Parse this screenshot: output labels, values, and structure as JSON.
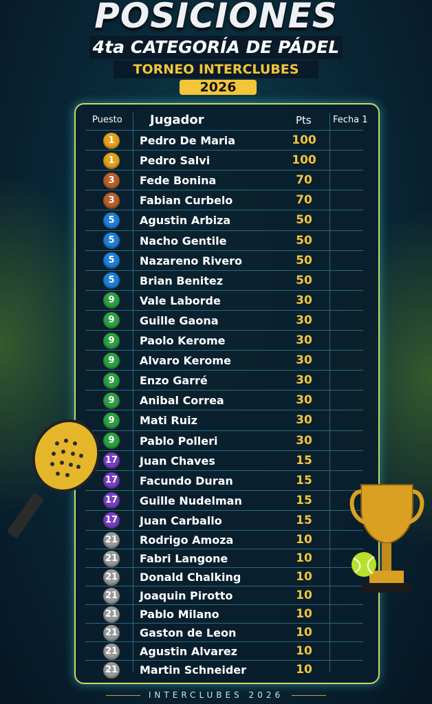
{
  "header": {
    "title": "POSICIONES",
    "subtitle": "4ta CATEGORÍA DE PÁDEL",
    "tournament": "TORNEO INTERCLUBES",
    "year": "2026"
  },
  "table": {
    "columns": [
      "Puesto",
      "Jugador",
      "Pts",
      "Fecha 1"
    ],
    "rows": [
      {
        "pos": "1",
        "name": "Pedro De Maria",
        "pts": "100",
        "fecha1": ""
      },
      {
        "pos": "1",
        "name": "Pedro Salvi",
        "pts": "100",
        "fecha1": ""
      },
      {
        "pos": "3",
        "name": "Fede Bonina",
        "pts": "70",
        "fecha1": ""
      },
      {
        "pos": "3",
        "name": "Fabian Curbelo",
        "pts": "70",
        "fecha1": ""
      },
      {
        "pos": "5",
        "name": "Agustin Arbiza",
        "pts": "50",
        "fecha1": ""
      },
      {
        "pos": "5",
        "name": "Nacho Gentile",
        "pts": "50",
        "fecha1": ""
      },
      {
        "pos": "5",
        "name": "Nazareno Rivero",
        "pts": "50",
        "fecha1": ""
      },
      {
        "pos": "5",
        "name": "Brian Benitez",
        "pts": "50",
        "fecha1": ""
      },
      {
        "pos": "9",
        "name": "Vale Laborde",
        "pts": "30",
        "fecha1": ""
      },
      {
        "pos": "9",
        "name": "Guille Gaona",
        "pts": "30",
        "fecha1": ""
      },
      {
        "pos": "9",
        "name": "Paolo Kerome",
        "pts": "30",
        "fecha1": ""
      },
      {
        "pos": "9",
        "name": "Alvaro Kerome",
        "pts": "30",
        "fecha1": ""
      },
      {
        "pos": "9",
        "name": "Enzo Garré",
        "pts": "30",
        "fecha1": ""
      },
      {
        "pos": "9",
        "name": "Anibal Correa",
        "pts": "30",
        "fecha1": ""
      },
      {
        "pos": "9",
        "name": "Mati Ruiz",
        "pts": "30",
        "fecha1": ""
      },
      {
        "pos": "9",
        "name": "Pablo Polleri",
        "pts": "30",
        "fecha1": ""
      },
      {
        "pos": "17",
        "name": "Juan Chaves",
        "pts": "15",
        "fecha1": ""
      },
      {
        "pos": "17",
        "name": "Facundo Duran",
        "pts": "15",
        "fecha1": ""
      },
      {
        "pos": "17",
        "name": "Guille Nudelman",
        "pts": "15",
        "fecha1": ""
      },
      {
        "pos": "17",
        "name": "Juan Carballo",
        "pts": "15",
        "fecha1": ""
      },
      {
        "pos": "21",
        "name": "Rodrigo Amoza",
        "pts": "10",
        "fecha1": ""
      },
      {
        "pos": "21",
        "name": "Fabri Langone",
        "pts": "10",
        "fecha1": ""
      },
      {
        "pos": "21",
        "name": "Donald Chalking",
        "pts": "10",
        "fecha1": ""
      },
      {
        "pos": "21",
        "name": "Joaquin Pirotto",
        "pts": "10",
        "fecha1": ""
      },
      {
        "pos": "21",
        "name": "Pablo Milano",
        "pts": "10",
        "fecha1": ""
      },
      {
        "pos": "21",
        "name": "Gaston de Leon",
        "pts": "10",
        "fecha1": ""
      },
      {
        "pos": "21",
        "name": "Agustin Alvarez",
        "pts": "10",
        "fecha1": ""
      },
      {
        "pos": "21",
        "name": "Martin Schneider",
        "pts": "10",
        "fecha1": ""
      }
    ]
  },
  "badge_colors": {
    "1": "#e3a01b",
    "3": "#b5602a",
    "5": "#1f7fd6",
    "9": "#2ea043",
    "17": "#7a3fc2",
    "21": "#9a9a9a"
  },
  "accent_color": "#f2c53a",
  "decorations": [
    "padel-racket-icon",
    "trophy-icon",
    "tennis-ball-icon"
  ],
  "footer": "INTERCLUBES 2026"
}
